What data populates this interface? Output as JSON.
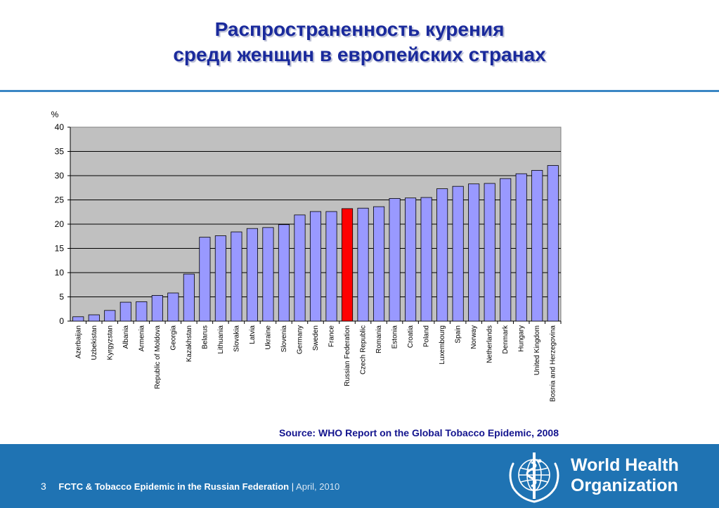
{
  "title": {
    "line1": "Распространенность курения",
    "line2": "среди женщин в европейских странах"
  },
  "source": "Source: WHO Report on the Global Tobacco Epidemic, 2008",
  "footer": {
    "page_number": "3",
    "text_bold": "FCTC &  Tobacco Epidemic in the Russian Federation",
    "separator": "|",
    "date": "April, 2010",
    "org_line1": "World Health",
    "org_line2": "Organization"
  },
  "chart_data": {
    "type": "bar",
    "ylabel": "%",
    "ylim": [
      0,
      40
    ],
    "yticks": [
      0,
      5,
      10,
      15,
      20,
      25,
      30,
      35,
      40
    ],
    "grid": true,
    "highlight": "Russian Federation",
    "colors": {
      "bar": "#9999ff",
      "highlight": "#ff0000",
      "plot_bg": "#c0c0c0"
    },
    "categories": [
      "Azerbaijan",
      "Uzbekistan",
      "Kyrgyzstan",
      "Albania",
      "Armenia",
      "Republic of Moldova",
      "Georgia",
      "Kazakhstan",
      "Belarus",
      "Lithuania",
      "Slovakia",
      "Latvia",
      "Ukraine",
      "Slovenia",
      "Germany",
      "Sweden",
      "France",
      "Russian Federation",
      "Czech Republic",
      "Romania",
      "Estonia",
      "Croatia",
      "Poland",
      "Luxembourg",
      "Spain",
      "Norway",
      "Netherlands",
      "Denmark",
      "Hungary",
      "United Kingdom",
      "Bosnia and Herzegovina"
    ],
    "values": [
      0.9,
      1.3,
      2.2,
      3.9,
      4.0,
      5.3,
      5.8,
      9.7,
      17.3,
      17.6,
      18.4,
      19.1,
      19.3,
      19.9,
      21.9,
      22.6,
      22.6,
      23.2,
      23.3,
      23.6,
      25.3,
      25.4,
      25.5,
      27.3,
      27.8,
      28.3,
      28.4,
      29.4,
      30.4,
      31.1,
      32.1
    ]
  }
}
